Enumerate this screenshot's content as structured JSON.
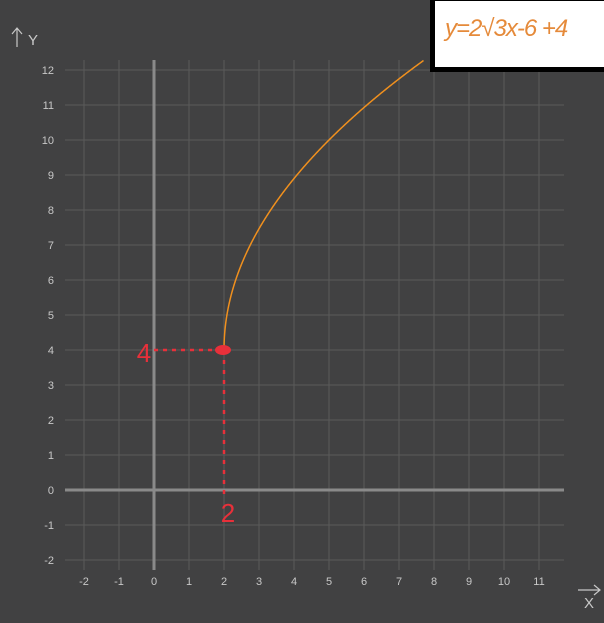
{
  "chart_data": {
    "type": "line",
    "xlabel": "X",
    "ylabel": "Y",
    "xlim": [
      -2,
      11
    ],
    "ylim": [
      -2,
      12
    ],
    "x_ticks": [
      -2,
      -1,
      0,
      1,
      2,
      3,
      4,
      5,
      6,
      7,
      8,
      9,
      10,
      11
    ],
    "y_ticks": [
      -2,
      -1,
      0,
      1,
      2,
      3,
      4,
      5,
      6,
      7,
      8,
      9,
      10,
      11,
      12
    ],
    "grid": true,
    "series": [
      {
        "function": "y = 2*sqrt(3x-6) + 4",
        "x_range": [
          2,
          7.7
        ],
        "color": "#f0901e"
      }
    ],
    "annotations": {
      "equation": "y=2√3x-6 +4",
      "point": {
        "x": 2,
        "y": 4
      },
      "x_mark_label": "2",
      "y_mark_label": "4",
      "color": "#e8303a"
    }
  },
  "colors": {
    "background": "#414142",
    "grid": "#5a5a5a",
    "axis": "#8a8a8a",
    "equation": "#e58a3a"
  }
}
